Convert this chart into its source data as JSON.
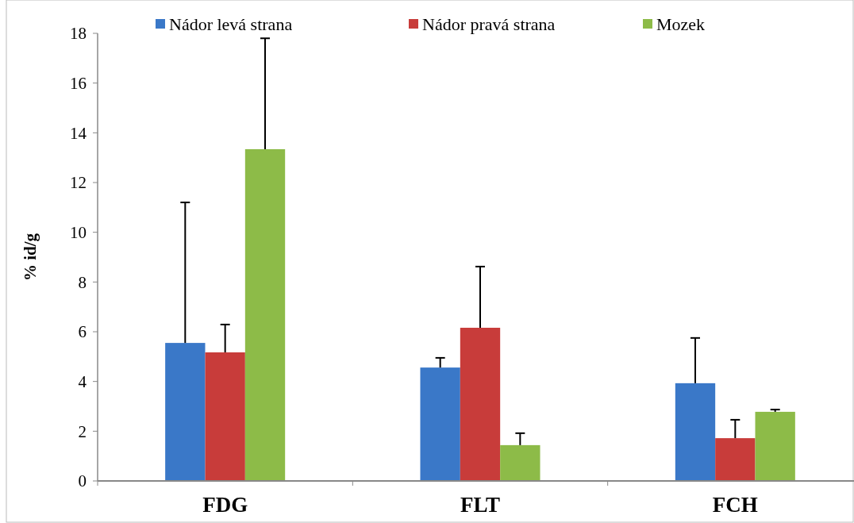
{
  "chart_data": {
    "type": "bar",
    "ylabel": "% id/g",
    "categories": [
      "FDG",
      "FLT",
      "FCH"
    ],
    "series": [
      {
        "name": "Nádor levá strana",
        "color": "#3a78c8",
        "values": [
          5.55,
          4.56,
          3.93
        ],
        "errors": [
          [
            5.55,
            11.2
          ],
          [
            4.56,
            4.95
          ],
          [
            3.93,
            5.75
          ]
        ]
      },
      {
        "name": "Nádor pravá strana",
        "color": "#c83c3a",
        "values": [
          5.17,
          6.16,
          1.72
        ],
        "errors": [
          [
            5.17,
            6.29
          ],
          [
            6.16,
            8.62
          ],
          [
            1.72,
            2.46
          ]
        ]
      },
      {
        "name": "Mozek",
        "color": "#8dbb48",
        "values": [
          13.34,
          1.44,
          2.78
        ],
        "errors": [
          [
            13.34,
            17.8
          ],
          [
            1.44,
            1.92
          ],
          [
            2.78,
            2.87
          ]
        ]
      }
    ],
    "ylim": [
      0,
      18
    ],
    "yticks": [
      0,
      2,
      4,
      6,
      8,
      10,
      12,
      14,
      16,
      18
    ],
    "grid": false,
    "legend": "top"
  }
}
